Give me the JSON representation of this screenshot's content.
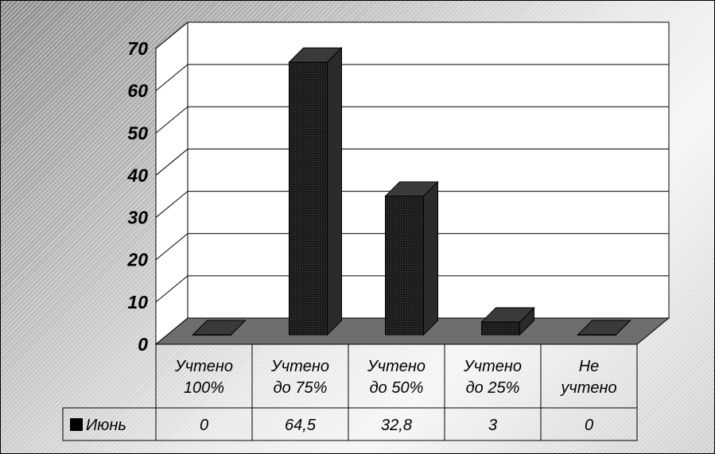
{
  "chart_data": {
    "type": "bar",
    "categories": [
      [
        "Учтено",
        "100%"
      ],
      [
        "Учтено",
        "до 75%"
      ],
      [
        "Учтено",
        "до 50%"
      ],
      [
        "Учтено",
        "до 25%"
      ],
      [
        "Не",
        "учтено"
      ]
    ],
    "series": [
      {
        "name": "Июнь",
        "values": [
          0,
          64.5,
          32.8,
          3,
          0
        ],
        "value_labels": [
          "0",
          "64,5",
          "32,8",
          "3",
          "0"
        ]
      }
    ],
    "y_ticks": [
      "0",
      "10",
      "20",
      "30",
      "40",
      "50",
      "60",
      "70"
    ],
    "ylim": [
      0,
      70
    ],
    "grid": true,
    "legend": "data-table-left",
    "bar_colors": {
      "front": "#1a1a1a",
      "side": "#2b2b2b",
      "top": "#3a3a3a"
    },
    "floor_color": "#6e6e6e",
    "wall_color": "#ffffff"
  }
}
